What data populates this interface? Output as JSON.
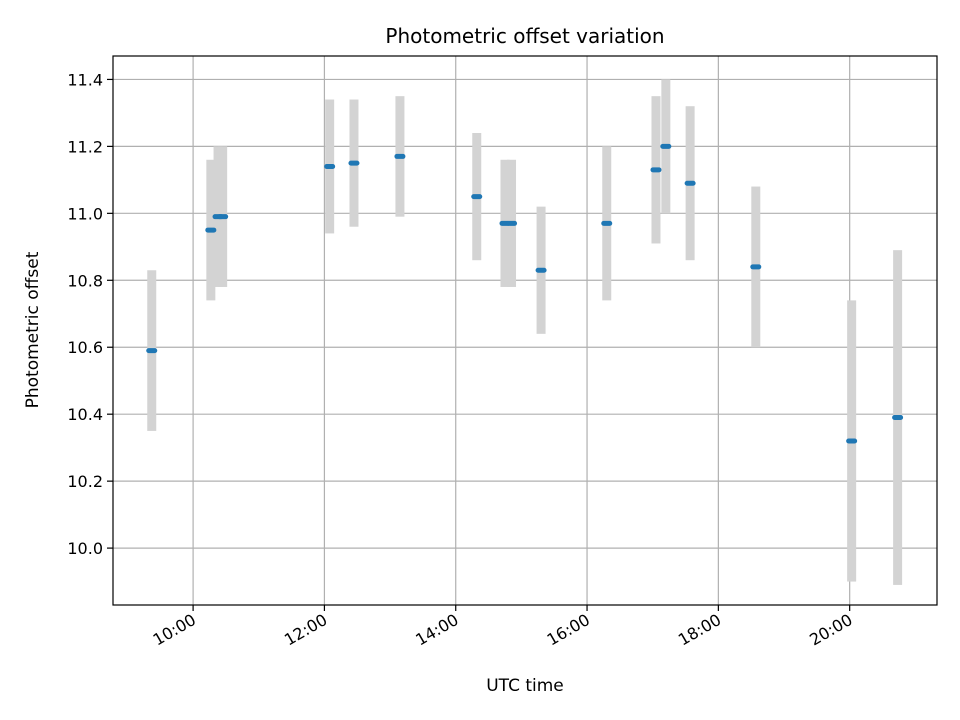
{
  "chart_data": {
    "type": "scatter",
    "title": "Photometric offset variation",
    "xlabel": "UTC time",
    "ylabel": "Photometric offset",
    "grid": true,
    "xlim_hours": [
      8.78,
      21.33
    ],
    "ylim": [
      9.83,
      11.47
    ],
    "x_ticks": [
      {
        "hour": 10,
        "label": "10:00"
      },
      {
        "hour": 12,
        "label": "12:00"
      },
      {
        "hour": 14,
        "label": "14:00"
      },
      {
        "hour": 16,
        "label": "16:00"
      },
      {
        "hour": 18,
        "label": "18:00"
      },
      {
        "hour": 20,
        "label": "20:00"
      }
    ],
    "y_ticks": [
      {
        "value": 10.0,
        "label": "10.0"
      },
      {
        "value": 10.2,
        "label": "10.2"
      },
      {
        "value": 10.4,
        "label": "10.4"
      },
      {
        "value": 10.6,
        "label": "10.6"
      },
      {
        "value": 10.8,
        "label": "10.8"
      },
      {
        "value": 11.0,
        "label": "11.0"
      },
      {
        "value": 11.2,
        "label": "11.2"
      },
      {
        "value": 11.4,
        "label": "11.4"
      }
    ],
    "colors": {
      "marker": "#1f77b4",
      "errorbar": "#d3d3d3",
      "grid": "#b0b0b0"
    },
    "points": [
      {
        "hour": 9.37,
        "y": 10.59,
        "err": 0.24
      },
      {
        "hour": 10.27,
        "y": 10.95,
        "err": 0.21
      },
      {
        "hour": 10.38,
        "y": 10.99,
        "err": 0.21
      },
      {
        "hour": 10.45,
        "y": 10.99,
        "err": 0.21
      },
      {
        "hour": 12.08,
        "y": 11.14,
        "err": 0.2
      },
      {
        "hour": 12.45,
        "y": 11.15,
        "err": 0.19
      },
      {
        "hour": 13.15,
        "y": 11.17,
        "err": 0.18
      },
      {
        "hour": 14.32,
        "y": 11.05,
        "err": 0.19
      },
      {
        "hour": 14.75,
        "y": 10.97,
        "err": 0.19
      },
      {
        "hour": 14.85,
        "y": 10.97,
        "err": 0.19
      },
      {
        "hour": 15.3,
        "y": 10.83,
        "err": 0.19
      },
      {
        "hour": 16.3,
        "y": 10.97,
        "err": 0.23
      },
      {
        "hour": 17.05,
        "y": 11.13,
        "err": 0.22
      },
      {
        "hour": 17.2,
        "y": 11.2,
        "err": 0.2
      },
      {
        "hour": 17.57,
        "y": 11.09,
        "err": 0.23
      },
      {
        "hour": 18.57,
        "y": 10.84,
        "err": 0.24
      },
      {
        "hour": 20.03,
        "y": 10.32,
        "err": 0.42
      },
      {
        "hour": 20.73,
        "y": 10.39,
        "err": 0.5
      }
    ]
  }
}
